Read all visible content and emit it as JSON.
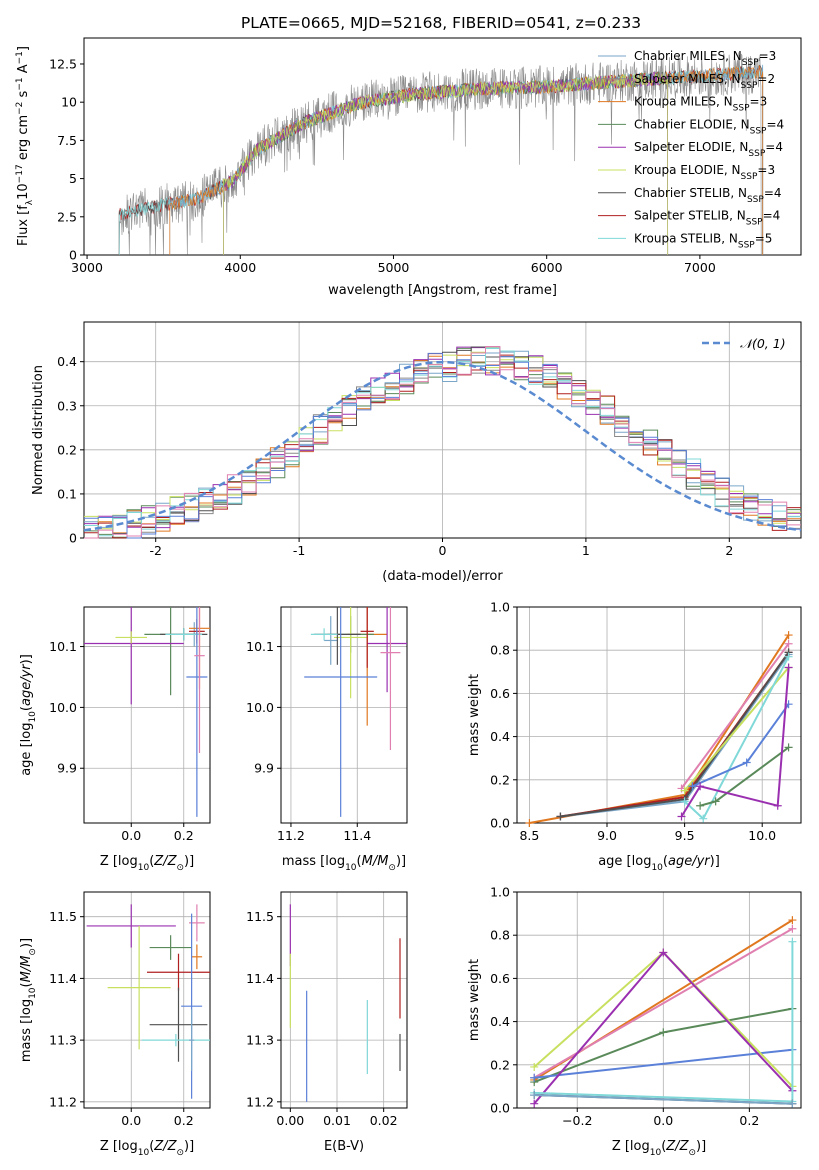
{
  "figure_title": "PLATE=0665, MJD=52168, FIBERID=0541, z=0.233",
  "colors": {
    "Chabrier MILES": "#7aa6c8",
    "Salpeter MILES": "#8a8a8a",
    "Kroupa MILES": "#e07820",
    "Chabrier ELODIE": "#5a8a5a",
    "Salpeter ELODIE": "#9a30b0",
    "Kroupa ELODIE": "#c8e060",
    "Chabrier STELIB": "#505050",
    "Salpeter STELIB": "#b02020",
    "Kroupa STELIB": "#80d8d8",
    "extra_blue": "#5a80d8",
    "extra_pink": "#e080b0",
    "normal_curve": "#5a8ad0"
  },
  "chart_data": [
    {
      "id": "spectrum",
      "type": "line",
      "xlabel": "wavelength [Angstrom, rest frame]",
      "ylabel": "Flux [f_λ 10^-17 erg cm^-2 s^-1 A^-1]",
      "xlim": [
        2980,
        7660
      ],
      "ylim": [
        0,
        14.2
      ],
      "xticks": [
        3000,
        4000,
        5000,
        6000,
        7000
      ],
      "yticks": [
        0.0,
        2.5,
        5.0,
        7.5,
        10.0,
        12.5
      ],
      "legend": "upper right",
      "series": [
        {
          "name": "Chabrier MILES, N_SSP=3",
          "range": [
            3540,
            7410
          ]
        },
        {
          "name": "Salpeter MILES, N_SSP=2",
          "range": [
            3210,
            7400
          ]
        },
        {
          "name": "Kroupa MILES, N_SSP=3",
          "range": [
            3540,
            7410
          ]
        },
        {
          "name": "Chabrier ELODIE, N_SSP=4",
          "range": [
            3890,
            6790
          ]
        },
        {
          "name": "Salpeter ELODIE, N_SSP=4",
          "range": [
            3890,
            6790
          ]
        },
        {
          "name": "Kroupa ELODIE, N_SSP=3",
          "range": [
            3890,
            6790
          ]
        },
        {
          "name": "Chabrier STELIB, N_SSP=4",
          "range": [
            3210,
            7410
          ]
        },
        {
          "name": "Salpeter STELIB, N_SSP=4",
          "range": [
            3210,
            7410
          ]
        },
        {
          "name": "Kroupa STELIB, N_SSP=5",
          "range": [
            3210,
            7410
          ]
        }
      ],
      "continuum_knots": [
        [
          3200,
          2.6
        ],
        [
          3500,
          3.3
        ],
        [
          3700,
          3.6
        ],
        [
          3950,
          4.8
        ],
        [
          4100,
          6.8
        ],
        [
          4400,
          8.6
        ],
        [
          4800,
          10.0
        ],
        [
          5200,
          10.6
        ],
        [
          5600,
          10.9
        ],
        [
          6000,
          11.0
        ],
        [
          6500,
          11.4
        ],
        [
          7000,
          11.7
        ],
        [
          7410,
          12.0
        ]
      ]
    },
    {
      "id": "residuals",
      "type": "histogram",
      "xlabel": "(data-model)/error",
      "ylabel": "Normed distribution",
      "xlim": [
        -2.5,
        2.5
      ],
      "ylim": [
        0,
        0.49
      ],
      "xticks": [
        -2,
        -1,
        0,
        1,
        2
      ],
      "yticks": [
        0.0,
        0.1,
        0.2,
        0.3,
        0.4
      ],
      "grid": true,
      "legend": "upper right",
      "reference_curve": {
        "name": "𝒩(0, 1)",
        "mean": 0,
        "sigma": 1
      },
      "bin_width": 0.1,
      "bin_start": -2.5,
      "base_hist": [
        0.015,
        0.02,
        0.025,
        0.03,
        0.04,
        0.05,
        0.06,
        0.07,
        0.08,
        0.095,
        0.11,
        0.13,
        0.15,
        0.17,
        0.19,
        0.22,
        0.245,
        0.27,
        0.29,
        0.31,
        0.33,
        0.345,
        0.36,
        0.37,
        0.385,
        0.39,
        0.4,
        0.405,
        0.4,
        0.395,
        0.39,
        0.38,
        0.36,
        0.345,
        0.33,
        0.31,
        0.29,
        0.265,
        0.245,
        0.22,
        0.195,
        0.17,
        0.145,
        0.125,
        0.105,
        0.09,
        0.075,
        0.06,
        0.05,
        0.04
      ]
    },
    {
      "id": "age-vs-Z",
      "type": "scatter",
      "xlabel": "Z [log10(Z/Z⊙)]",
      "ylabel": "age [log10(age/yr)]",
      "xlim": [
        -0.18,
        0.3
      ],
      "ylim": [
        9.81,
        10.165
      ],
      "xticks": [
        "0.0",
        "0.2"
      ],
      "yticks": [
        "9.9",
        "10.0",
        "10.1"
      ],
      "grid": true,
      "points": [
        {
          "series": "Chabrier MILES",
          "x": 0.24,
          "y": 10.12,
          "xerr": 0.03,
          "yerr": 0.02
        },
        {
          "series": "Kroupa MILES",
          "x": 0.26,
          "y": 10.13,
          "xerr": 0.04,
          "yerr": 0.1
        },
        {
          "series": "Chabrier ELODIE",
          "x": 0.15,
          "y": 10.12,
          "xerr": 0.1,
          "yerr": 0.1
        },
        {
          "series": "Salpeter ELODIE",
          "x": 0.0,
          "y": 10.105,
          "xerr": 0.2,
          "yerr": 0.1
        },
        {
          "series": "Kroupa ELODIE",
          "x": 0.0,
          "y": 10.115,
          "xerr": 0.06,
          "yerr": 0.01
        },
        {
          "series": "Chabrier STELIB",
          "x": 0.2,
          "y": 10.12,
          "xerr": 0.09,
          "yerr": 0.01
        },
        {
          "series": "Salpeter STELIB",
          "x": 0.25,
          "y": 10.125,
          "xerr": 0.03,
          "yerr": 0.02
        },
        {
          "series": "Kroupa STELIB",
          "x": 0.2,
          "y": 10.12,
          "xerr": 0.07,
          "yerr": 0.01
        },
        {
          "series": "extra_blue",
          "x": 0.25,
          "y": 10.05,
          "xerr": 0.04,
          "yerr": 0.23
        },
        {
          "series": "extra_pink",
          "x": 0.26,
          "y": 10.085,
          "xerr": 0.02,
          "yerr": 0.16
        }
      ]
    },
    {
      "id": "age-vs-mass",
      "type": "scatter",
      "xlabel": "mass [log10(M/M⊙)]",
      "xlim": [
        11.17,
        11.55
      ],
      "ylim": [
        9.81,
        10.165
      ],
      "xticks": [
        "11.2",
        "11.4"
      ],
      "yticks": [
        "9.9",
        "10.0",
        "10.1"
      ],
      "grid": true,
      "points": [
        {
          "series": "Chabrier MILES",
          "x": 11.32,
          "y": 10.11,
          "xerr": 0.02,
          "yerr": 0.04
        },
        {
          "series": "Kroupa MILES",
          "x": 11.43,
          "y": 10.12,
          "xerr": 0.06,
          "yerr": 0.15
        },
        {
          "series": "Chabrier ELODIE",
          "x": 11.38,
          "y": 10.12,
          "xerr": 0.07,
          "yerr": 0.03
        },
        {
          "series": "Salpeter ELODIE",
          "x": 11.49,
          "y": 10.105,
          "xerr": 0.06,
          "yerr": 0.08
        },
        {
          "series": "Kroupa ELODIE",
          "x": 11.38,
          "y": 10.115,
          "xerr": 0.05,
          "yerr": 0.1
        },
        {
          "series": "Chabrier STELIB",
          "x": 11.34,
          "y": 10.12,
          "xerr": 0.07,
          "yerr": 0.05
        },
        {
          "series": "Salpeter STELIB",
          "x": 11.43,
          "y": 10.125,
          "xerr": 0.02,
          "yerr": 0.06
        },
        {
          "series": "Kroupa STELIB",
          "x": 11.3,
          "y": 10.12,
          "xerr": 0.04,
          "yerr": 0.01
        },
        {
          "series": "extra_blue",
          "x": 11.35,
          "y": 10.05,
          "xerr": 0.11,
          "yerr": 0.23
        },
        {
          "series": "extra_pink",
          "x": 11.5,
          "y": 10.09,
          "xerr": 0.03,
          "yerr": 0.16
        }
      ]
    },
    {
      "id": "weight-vs-age",
      "type": "line",
      "xlabel": "age [log10(age/yr)]",
      "ylabel": "mass weight",
      "xlim": [
        8.42,
        10.25
      ],
      "ylim": [
        0,
        1.0
      ],
      "xticks": [
        "8.5",
        "9.0",
        "9.5",
        "10.0"
      ],
      "yticks": [
        "0.0",
        "0.2",
        "0.4",
        "0.6",
        "0.8",
        "1.0"
      ],
      "grid": true,
      "series": [
        {
          "series": "Kroupa MILES",
          "x": [
            8.5,
            9.5,
            10.17
          ],
          "y": [
            0.0,
            0.13,
            0.87
          ]
        },
        {
          "series": "Chabrier MILES",
          "x": [
            8.7,
            9.5,
            10.17
          ],
          "y": [
            0.03,
            0.1,
            0.78
          ]
        },
        {
          "series": "Salpeter STELIB",
          "x": [
            8.7,
            9.5,
            10.17
          ],
          "y": [
            0.03,
            0.12,
            0.79
          ]
        },
        {
          "series": "Chabrier STELIB",
          "x": [
            8.7,
            9.5,
            10.17
          ],
          "y": [
            0.03,
            0.11,
            0.79
          ]
        },
        {
          "series": "extra_pink",
          "x": [
            9.48,
            10.17
          ],
          "y": [
            0.16,
            0.83
          ]
        },
        {
          "series": "Kroupa ELODIE",
          "x": [
            9.5,
            10.17
          ],
          "y": [
            0.15,
            0.72
          ]
        },
        {
          "series": "Kroupa STELIB",
          "x": [
            9.5,
            9.62,
            10.17
          ],
          "y": [
            0.1,
            0.02,
            0.77
          ]
        },
        {
          "series": "extra_blue",
          "x": [
            9.55,
            9.9,
            10.17
          ],
          "y": [
            0.17,
            0.28,
            0.55
          ]
        },
        {
          "series": "Chabrier ELODIE",
          "x": [
            9.6,
            9.7,
            10.17
          ],
          "y": [
            0.08,
            0.1,
            0.35
          ]
        },
        {
          "series": "Salpeter ELODIE",
          "x": [
            9.48,
            9.6,
            10.1,
            10.17
          ],
          "y": [
            0.03,
            0.17,
            0.08,
            0.72
          ]
        }
      ]
    },
    {
      "id": "mass-vs-Z",
      "type": "scatter",
      "xlabel": "Z [log10(Z/Z⊙)]",
      "ylabel": "mass [log10(M/M⊙)]",
      "xlim": [
        -0.18,
        0.3
      ],
      "ylim": [
        11.19,
        11.54
      ],
      "xticks": [
        "0.0",
        "0.2"
      ],
      "yticks": [
        "11.2",
        "11.3",
        "11.4",
        "11.5"
      ],
      "grid": true,
      "points": [
        {
          "series": "Salpeter ELODIE",
          "x": 0.0,
          "y": 11.485,
          "xerr": 0.17,
          "yerr": 0.035
        },
        {
          "series": "extra_pink",
          "x": 0.25,
          "y": 11.49,
          "xerr": 0.03,
          "yerr": 0.03
        },
        {
          "series": "Chabrier ELODIE",
          "x": 0.15,
          "y": 11.45,
          "xerr": 0.08,
          "yerr": 0.02
        },
        {
          "series": "Kroupa MILES",
          "x": 0.25,
          "y": 11.435,
          "xerr": 0.02,
          "yerr": 0.02
        },
        {
          "series": "Salpeter STELIB",
          "x": 0.18,
          "y": 11.41,
          "xerr": 0.12,
          "yerr": 0.03
        },
        {
          "series": "Kroupa ELODIE",
          "x": 0.03,
          "y": 11.385,
          "xerr": 0.12,
          "yerr": 0.1
        },
        {
          "series": "extra_blue",
          "x": 0.23,
          "y": 11.355,
          "xerr": 0.04,
          "yerr": 0.15
        },
        {
          "series": "Chabrier STELIB",
          "x": 0.18,
          "y": 11.325,
          "xerr": 0.11,
          "yerr": 0.06
        },
        {
          "series": "Kroupa STELIB",
          "x": 0.17,
          "y": 11.3,
          "xerr": 0.13,
          "yerr": 0.01
        },
        {
          "series": "Chabrier MILES",
          "x": 0.23,
          "y": 11.3,
          "xerr": 0.01,
          "yerr": 0.05
        }
      ]
    },
    {
      "id": "mass-vs-EBV",
      "type": "scatter",
      "xlabel": "E(B-V)",
      "xlim": [
        -0.002,
        0.025
      ],
      "ylim": [
        11.19,
        11.54
      ],
      "xticks": [
        "0.00",
        "0.01",
        "0.02"
      ],
      "yticks": [
        "11.2",
        "11.3",
        "11.4",
        "11.5"
      ],
      "grid": true,
      "points": [
        {
          "series": "Salpeter ELODIE",
          "x": 0.0,
          "y": 11.47,
          "xerr": 0.0,
          "yerr": 0.05
        },
        {
          "series": "Kroupa ELODIE",
          "x": 0.0,
          "y": 11.38,
          "xerr": 0.0,
          "yerr": 0.06
        },
        {
          "series": "extra_blue",
          "x": 0.0035,
          "y": 11.29,
          "xerr": 0.0,
          "yerr": 0.09
        },
        {
          "series": "Kroupa STELIB",
          "x": 0.0165,
          "y": 11.305,
          "xerr": 0.0,
          "yerr": 0.06
        },
        {
          "series": "Salpeter STELIB",
          "x": 0.0235,
          "y": 11.4,
          "xerr": 0.0,
          "yerr": 0.065
        },
        {
          "series": "Chabrier STELIB",
          "x": 0.0235,
          "y": 11.28,
          "xerr": 0.0,
          "yerr": 0.03
        }
      ]
    },
    {
      "id": "weight-vs-Z",
      "type": "line",
      "xlabel": "Z [log10(Z/Z⊙)]",
      "ylabel": "mass weight",
      "xlim": [
        -0.34,
        0.32
      ],
      "ylim": [
        0,
        1.0
      ],
      "xticks": [
        "−0.2",
        "0.0",
        "0.2"
      ],
      "yticks": [
        "0.0",
        "0.2",
        "0.4",
        "0.6",
        "0.8",
        "1.0"
      ],
      "grid": true,
      "series": [
        {
          "series": "Kroupa MILES",
          "x": [
            -0.3,
            0.3
          ],
          "y": [
            0.13,
            0.87
          ]
        },
        {
          "series": "extra_pink",
          "x": [
            -0.3,
            0.3
          ],
          "y": [
            0.14,
            0.83
          ]
        },
        {
          "series": "Chabrier ELODIE",
          "x": [
            -0.3,
            0.0,
            0.3
          ],
          "y": [
            0.12,
            0.35,
            0.46
          ]
        },
        {
          "series": "extra_blue",
          "x": [
            -0.3,
            0.3
          ],
          "y": [
            0.14,
            0.27
          ]
        },
        {
          "series": "Kroupa ELODIE",
          "x": [
            -0.3,
            0.0,
            0.3
          ],
          "y": [
            0.19,
            0.72,
            0.1
          ]
        },
        {
          "series": "Salpeter ELODIE",
          "x": [
            -0.3,
            0.0,
            0.3
          ],
          "y": [
            0.02,
            0.72,
            0.08
          ]
        },
        {
          "series": "Kroupa STELIB",
          "x": [
            -0.3,
            0.3,
            0.3
          ],
          "y": [
            0.07,
            0.03,
            0.77
          ]
        },
        {
          "series": "Chabrier STELIB",
          "x": [
            -0.3,
            0.3
          ],
          "y": [
            0.06,
            0.02
          ]
        },
        {
          "series": "Chabrier MILES",
          "x": [
            -0.3,
            0.3
          ],
          "y": [
            0.06,
            0.02
          ]
        }
      ]
    }
  ]
}
